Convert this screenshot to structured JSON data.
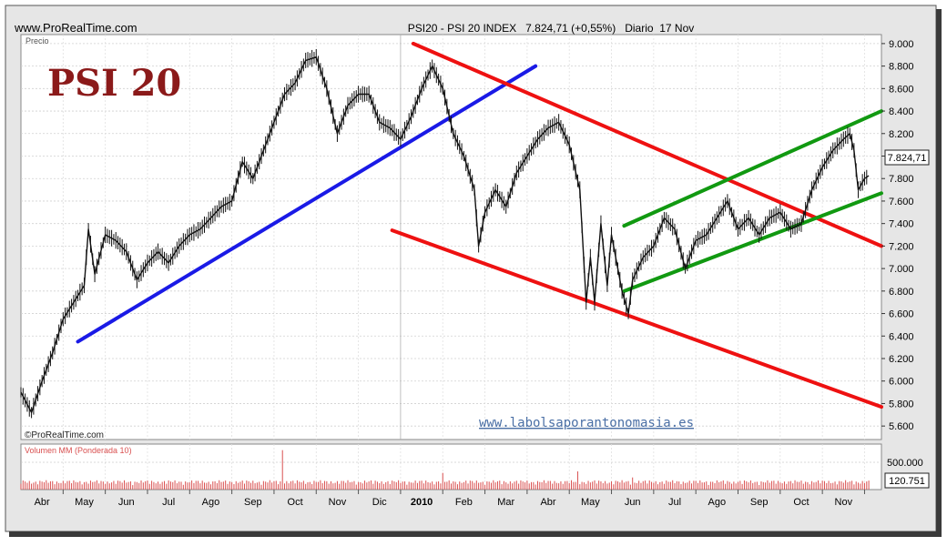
{
  "header": {
    "site": "www.ProRealTime.com",
    "title": "PSI20 - PSI 20 INDEX   7.824,71 (+0,55%)   Diario  17 Nov"
  },
  "logo_text": "PSI 20",
  "watermark": "www.labolsaporantonomasia.es",
  "copyright": "©ProRealTime.com",
  "price_panel": {
    "label": "Precio",
    "last_price_label": "7.824,71",
    "y_ticks": [
      {
        "v": 5600,
        "label": "5.600"
      },
      {
        "v": 5800,
        "label": "5.800"
      },
      {
        "v": 6000,
        "label": "6.000"
      },
      {
        "v": 6200,
        "label": "6.200"
      },
      {
        "v": 6400,
        "label": "6.400"
      },
      {
        "v": 6600,
        "label": "6.600"
      },
      {
        "v": 6800,
        "label": "6.800"
      },
      {
        "v": 7000,
        "label": "7.000"
      },
      {
        "v": 7200,
        "label": "7.200"
      },
      {
        "v": 7400,
        "label": "7.400"
      },
      {
        "v": 7600,
        "label": "7.600"
      },
      {
        "v": 7800,
        "label": "7.800"
      },
      {
        "v": 8000,
        "label": "8.000"
      },
      {
        "v": 8200,
        "label": "8.200"
      },
      {
        "v": 8400,
        "label": "8.400"
      },
      {
        "v": 8600,
        "label": "8.600"
      },
      {
        "v": 8800,
        "label": "8.800"
      },
      {
        "v": 9000,
        "label": "9.000"
      }
    ]
  },
  "volume_panel": {
    "label": "Volumen MM (Ponderada 10)",
    "tick_label": "500.000",
    "last_volume_label": "120.751"
  },
  "x_axis": {
    "labels": [
      "Abr",
      "May",
      "Jun",
      "Jul",
      "Ago",
      "Sep",
      "Oct",
      "Nov",
      "Dic",
      "2010",
      "Feb",
      "Mar",
      "Abr",
      "May",
      "Jun",
      "Jul",
      "Ago",
      "Sep",
      "Oct",
      "Nov"
    ],
    "positions": [
      0.5,
      1.5,
      2.5,
      3.5,
      4.5,
      5.5,
      6.5,
      7.5,
      8.5,
      9.5,
      10.5,
      11.5,
      12.5,
      13.5,
      14.5,
      15.5,
      16.5,
      17.5,
      18.5,
      19.5
    ]
  },
  "colors": {
    "frame_bg": "#e6e6e6",
    "blue_line": "#1a1ae6",
    "red_line": "#ee1111",
    "green_line": "#119911",
    "volume": "#d95050",
    "logo": "#8b1a1a",
    "watermark": "#4a6fa5"
  },
  "chart_data": {
    "type": "line",
    "style": "ohlc-bars",
    "title": "PSI20 - PSI 20 INDEX   7.824,71 (+0,55%)   Diario  17 Nov",
    "ylabel": "Precio",
    "ylim": [
      5480,
      9080
    ],
    "x_unit": "months (0 = start of Apr 2009)",
    "xlim": [
      0,
      20.4
    ],
    "grid": true,
    "series": [
      {
        "values": [
          [
            0.0,
            5900
          ],
          [
            0.25,
            5720
          ],
          [
            0.5,
            6000
          ],
          [
            0.75,
            6250
          ],
          [
            1.0,
            6550
          ],
          [
            1.25,
            6700
          ],
          [
            1.5,
            6850
          ],
          [
            1.6,
            7350
          ],
          [
            1.75,
            6950
          ],
          [
            2.0,
            7300
          ],
          [
            2.25,
            7250
          ],
          [
            2.5,
            7150
          ],
          [
            2.75,
            6900
          ],
          [
            3.0,
            7050
          ],
          [
            3.25,
            7150
          ],
          [
            3.5,
            7050
          ],
          [
            3.75,
            7200
          ],
          [
            4.0,
            7300
          ],
          [
            4.25,
            7350
          ],
          [
            4.5,
            7450
          ],
          [
            4.75,
            7550
          ],
          [
            5.0,
            7600
          ],
          [
            5.25,
            7950
          ],
          [
            5.5,
            7800
          ],
          [
            5.75,
            8050
          ],
          [
            6.0,
            8300
          ],
          [
            6.25,
            8550
          ],
          [
            6.5,
            8650
          ],
          [
            6.75,
            8850
          ],
          [
            7.0,
            8880
          ],
          [
            7.25,
            8600
          ],
          [
            7.5,
            8200
          ],
          [
            7.75,
            8450
          ],
          [
            8.0,
            8550
          ],
          [
            8.25,
            8550
          ],
          [
            8.5,
            8300
          ],
          [
            8.75,
            8250
          ],
          [
            9.0,
            8150
          ],
          [
            9.25,
            8350
          ],
          [
            9.5,
            8600
          ],
          [
            9.75,
            8800
          ],
          [
            10.0,
            8600
          ],
          [
            10.25,
            8200
          ],
          [
            10.5,
            8000
          ],
          [
            10.75,
            7700
          ],
          [
            10.85,
            7200
          ],
          [
            11.0,
            7500
          ],
          [
            11.25,
            7700
          ],
          [
            11.5,
            7550
          ],
          [
            11.75,
            7850
          ],
          [
            12.0,
            8000
          ],
          [
            12.25,
            8150
          ],
          [
            12.5,
            8250
          ],
          [
            12.75,
            8300
          ],
          [
            13.0,
            8100
          ],
          [
            13.25,
            7700
          ],
          [
            13.4,
            6700
          ],
          [
            13.5,
            7100
          ],
          [
            13.6,
            6700
          ],
          [
            13.75,
            7400
          ],
          [
            13.9,
            6850
          ],
          [
            14.0,
            7300
          ],
          [
            14.25,
            6800
          ],
          [
            14.4,
            6600
          ],
          [
            14.5,
            6900
          ],
          [
            14.75,
            7100
          ],
          [
            15.0,
            7200
          ],
          [
            15.25,
            7450
          ],
          [
            15.5,
            7350
          ],
          [
            15.75,
            7000
          ],
          [
            16.0,
            7250
          ],
          [
            16.25,
            7300
          ],
          [
            16.5,
            7450
          ],
          [
            16.75,
            7600
          ],
          [
            17.0,
            7350
          ],
          [
            17.25,
            7450
          ],
          [
            17.5,
            7300
          ],
          [
            17.75,
            7450
          ],
          [
            18.0,
            7500
          ],
          [
            18.25,
            7350
          ],
          [
            18.5,
            7400
          ],
          [
            18.75,
            7700
          ],
          [
            19.0,
            7900
          ],
          [
            19.25,
            8050
          ],
          [
            19.5,
            8150
          ],
          [
            19.65,
            8200
          ],
          [
            19.75,
            8050
          ],
          [
            19.85,
            7700
          ],
          [
            20.0,
            7800
          ],
          [
            20.1,
            7825
          ]
        ]
      }
    ],
    "trend_lines": [
      {
        "color": "blue",
        "from": [
          1.35,
          6350
        ],
        "to": [
          12.2,
          8800
        ]
      },
      {
        "color": "red",
        "from": [
          9.3,
          9000
        ],
        "to": [
          20.4,
          7200
        ]
      },
      {
        "color": "red",
        "from": [
          8.8,
          7340
        ],
        "to": [
          20.4,
          5770
        ]
      },
      {
        "color": "green",
        "from": [
          14.3,
          7380
        ],
        "to": [
          20.4,
          8400
        ]
      },
      {
        "color": "green",
        "from": [
          14.3,
          6800
        ],
        "to": [
          20.4,
          7670
        ]
      }
    ],
    "volume": {
      "name": "Volumen MM (Ponderada 10)",
      "ylim": [
        0,
        900000
      ],
      "typical": 120000,
      "spikes": [
        [
          6.2,
          780000
        ],
        [
          10.0,
          330000
        ],
        [
          13.2,
          360000
        ],
        [
          14.5,
          240000
        ]
      ],
      "last": 120751
    }
  }
}
